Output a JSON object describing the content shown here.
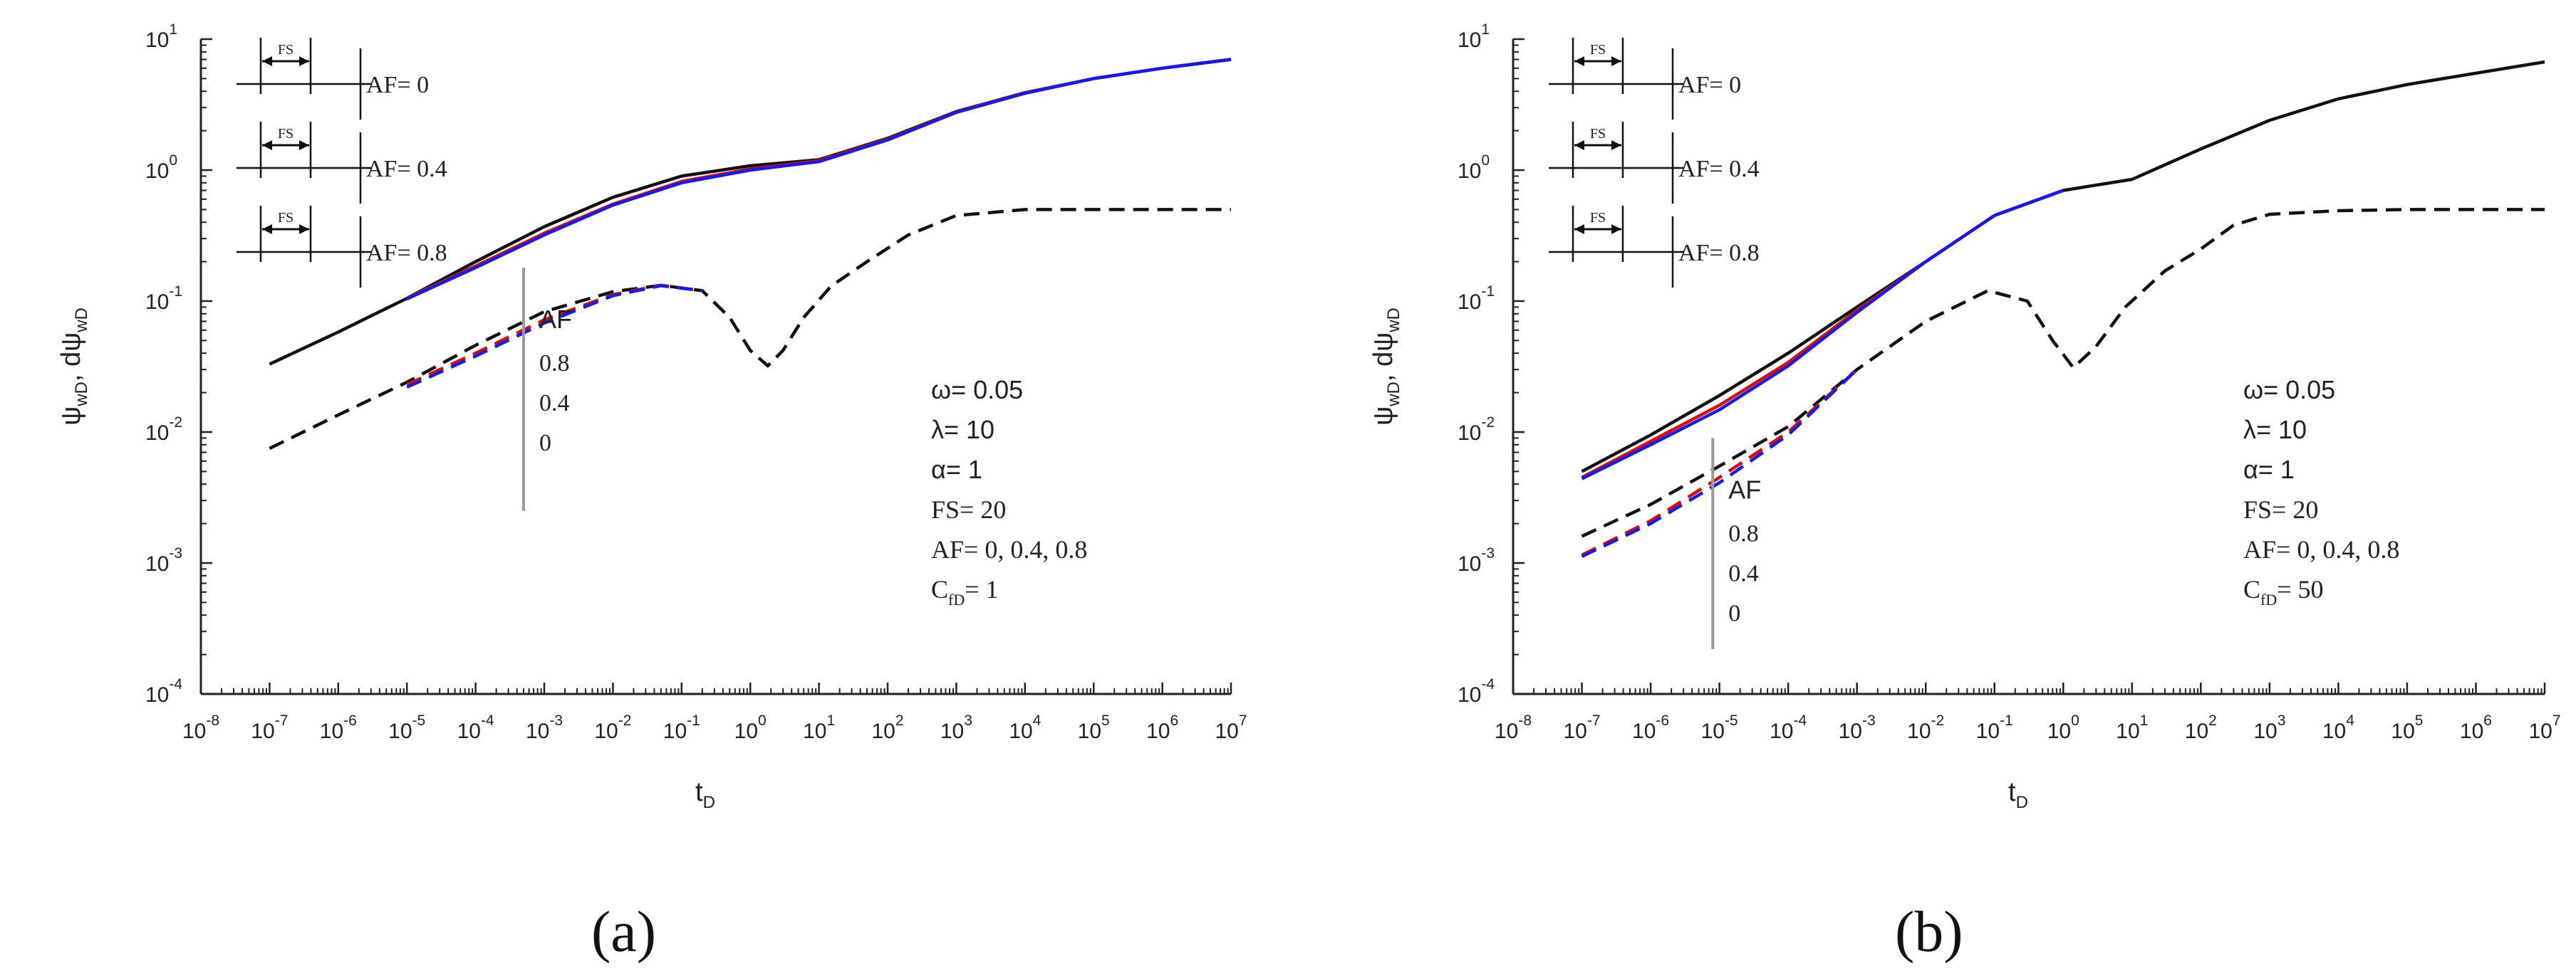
{
  "colors": {
    "af0": "#111111",
    "af04": "#d01010",
    "af08": "#1a1ae0",
    "axis": "#222222",
    "marker": "#9a9a9a"
  },
  "chart_data": [
    {
      "type": "line",
      "panel_label": "(a)",
      "xscale": "log",
      "yscale": "log",
      "xlim": [
        1e-08,
        10000000.0
      ],
      "ylim": [
        0.0001,
        10
      ],
      "xlabel": {
        "main": "t",
        "sub": "D"
      },
      "ylabel": {
        "a": "ψ",
        "a_sub": "wD",
        "sep": ", dψ",
        "b_sub": "wD"
      },
      "xticks": [
        {
          "b": "10",
          "e": "-8"
        },
        {
          "b": "10",
          "e": "-7"
        },
        {
          "b": "10",
          "e": "-6"
        },
        {
          "b": "10",
          "e": "-5"
        },
        {
          "b": "10",
          "e": "-4"
        },
        {
          "b": "10",
          "e": "-3"
        },
        {
          "b": "10",
          "e": "-2"
        },
        {
          "b": "10",
          "e": "-1"
        },
        {
          "b": "10",
          "e": "0"
        },
        {
          "b": "10",
          "e": "1"
        },
        {
          "b": "10",
          "e": "2"
        },
        {
          "b": "10",
          "e": "3"
        },
        {
          "b": "10",
          "e": "4"
        },
        {
          "b": "10",
          "e": "5"
        },
        {
          "b": "10",
          "e": "6"
        },
        {
          "b": "10",
          "e": "7"
        }
      ],
      "yticks": [
        {
          "b": "10",
          "e": "-4"
        },
        {
          "b": "10",
          "e": "-3"
        },
        {
          "b": "10",
          "e": "-2"
        },
        {
          "b": "10",
          "e": "-1"
        },
        {
          "b": "10",
          "e": "0"
        },
        {
          "b": "10",
          "e": "1"
        }
      ],
      "legend": {
        "items": [
          {
            "label": "AF= 0",
            "fs": "FS",
            "color_key": "af0"
          },
          {
            "label": "AF= 0.4",
            "fs": "FS",
            "color_key": "af04"
          },
          {
            "label": "AF= 0.8",
            "fs": "FS",
            "color_key": "af08"
          }
        ]
      },
      "annotation": {
        "title": "AF",
        "values": [
          "0.8",
          "0.4",
          "0"
        ],
        "arrow_x": 0.0005,
        "arrow_y": [
          0.18,
          0.0025
        ]
      },
      "params": {
        "omega": "ω= 0.05",
        "lambda": "λ= 10",
        "alpha": "α= 1",
        "fs": "FS= 20",
        "af": "AF= 0, 0.4, 0.8",
        "cfd_pre": "C",
        "cfd_sub": "fD",
        "cfd_post": "= 1"
      },
      "series": [
        {
          "name": "ψwD AF=0",
          "color_key": "af0",
          "dash": false,
          "points": [
            [
              1e-07,
              0.033
            ],
            [
              1e-06,
              0.058
            ],
            [
              1e-05,
              0.105
            ],
            [
              0.0001,
              0.2
            ],
            [
              0.001,
              0.37
            ],
            [
              0.01,
              0.62
            ],
            [
              0.1,
              0.9
            ],
            [
              1,
              1.08
            ],
            [
              10,
              1.2
            ],
            [
              100,
              1.75
            ],
            [
              1000.0,
              2.8
            ],
            [
              10000.0,
              3.9
            ],
            [
              100000.0,
              5
            ],
            [
              1000000.0,
              6
            ],
            [
              10000000.0,
              7
            ]
          ]
        },
        {
          "name": "ψwD AF=0.4",
          "color_key": "af04",
          "dash": false,
          "points": [
            [
              1e-05,
              0.105
            ],
            [
              0.0001,
              0.185
            ],
            [
              0.001,
              0.33
            ],
            [
              0.01,
              0.55
            ],
            [
              0.1,
              0.82
            ],
            [
              1,
              1.02
            ],
            [
              10,
              1.18
            ],
            [
              100,
              1.72
            ],
            [
              1000.0,
              2.78
            ],
            [
              10000.0,
              3.88
            ],
            [
              100000.0,
              5
            ],
            [
              1000000.0,
              6
            ],
            [
              10000000.0,
              7
            ]
          ]
        },
        {
          "name": "ψwD AF=0.8",
          "color_key": "af08",
          "dash": false,
          "points": [
            [
              1e-05,
              0.104
            ],
            [
              0.0001,
              0.18
            ],
            [
              0.001,
              0.32
            ],
            [
              0.01,
              0.54
            ],
            [
              0.1,
              0.8
            ],
            [
              1,
              1
            ],
            [
              10,
              1.16
            ],
            [
              100,
              1.7
            ],
            [
              1000.0,
              2.76
            ],
            [
              10000.0,
              3.86
            ],
            [
              100000.0,
              5
            ],
            [
              1000000.0,
              6
            ],
            [
              10000000.0,
              7
            ]
          ]
        },
        {
          "name": "dψwD AF=0",
          "color_key": "af0",
          "dash": true,
          "points": [
            [
              1e-07,
              0.0075
            ],
            [
              1e-06,
              0.0135
            ],
            [
              1e-05,
              0.024
            ],
            [
              0.0001,
              0.046
            ],
            [
              0.001,
              0.083
            ],
            [
              0.01,
              0.118
            ],
            [
              0.05,
              0.132
            ],
            [
              0.2,
              0.12
            ],
            [
              0.5,
              0.075
            ],
            [
              1,
              0.042
            ],
            [
              1.8,
              0.032
            ],
            [
              3,
              0.042
            ],
            [
              6,
              0.075
            ],
            [
              15,
              0.13
            ],
            [
              50,
              0.2
            ],
            [
              200,
              0.32
            ],
            [
              1000.0,
              0.45
            ],
            [
              10000.0,
              0.5
            ],
            [
              100000.0,
              0.5
            ],
            [
              10000000.0,
              0.5
            ]
          ]
        },
        {
          "name": "dψwD AF=0.4",
          "color_key": "af04",
          "dash": true,
          "points": [
            [
              1e-05,
              0.023
            ],
            [
              0.0001,
              0.04
            ],
            [
              0.001,
              0.072
            ],
            [
              0.01,
              0.112
            ],
            [
              0.05,
              0.132
            ],
            [
              0.2,
              0.12
            ]
          ]
        },
        {
          "name": "dψwD AF=0.8",
          "color_key": "af08",
          "dash": true,
          "points": [
            [
              1e-05,
              0.022
            ],
            [
              0.0001,
              0.038
            ],
            [
              0.001,
              0.068
            ],
            [
              0.01,
              0.11
            ],
            [
              0.05,
              0.131
            ],
            [
              0.2,
              0.12
            ]
          ]
        }
      ]
    },
    {
      "type": "line",
      "panel_label": "(b)",
      "xscale": "log",
      "yscale": "log",
      "xlim": [
        1e-08,
        10000000.0
      ],
      "ylim": [
        0.0001,
        10
      ],
      "xlabel": {
        "main": "t",
        "sub": "D"
      },
      "ylabel": {
        "a": "ψ",
        "a_sub": "wD",
        "sep": ", dψ",
        "b_sub": "wD"
      },
      "xticks": [
        {
          "b": "10",
          "e": "-8"
        },
        {
          "b": "10",
          "e": "-7"
        },
        {
          "b": "10",
          "e": "-6"
        },
        {
          "b": "10",
          "e": "-5"
        },
        {
          "b": "10",
          "e": "-4"
        },
        {
          "b": "10",
          "e": "-3"
        },
        {
          "b": "10",
          "e": "-2"
        },
        {
          "b": "10",
          "e": "-1"
        },
        {
          "b": "10",
          "e": "0"
        },
        {
          "b": "10",
          "e": "1"
        },
        {
          "b": "10",
          "e": "2"
        },
        {
          "b": "10",
          "e": "3"
        },
        {
          "b": "10",
          "e": "4"
        },
        {
          "b": "10",
          "e": "5"
        },
        {
          "b": "10",
          "e": "6"
        },
        {
          "b": "10",
          "e": "7"
        }
      ],
      "yticks": [
        {
          "b": "10",
          "e": "-4"
        },
        {
          "b": "10",
          "e": "-3"
        },
        {
          "b": "10",
          "e": "-2"
        },
        {
          "b": "10",
          "e": "-1"
        },
        {
          "b": "10",
          "e": "0"
        },
        {
          "b": "10",
          "e": "1"
        }
      ],
      "legend": {
        "items": [
          {
            "label": "AF= 0",
            "fs": "FS",
            "color_key": "af0"
          },
          {
            "label": "AF= 0.4",
            "fs": "FS",
            "color_key": "af04"
          },
          {
            "label": "AF= 0.8",
            "fs": "FS",
            "color_key": "af08"
          }
        ]
      },
      "annotation": {
        "title": "AF",
        "values": [
          "0.8",
          "0.4",
          "0"
        ],
        "arrow_x": 8e-06,
        "arrow_y": [
          0.009,
          0.00022
        ]
      },
      "params": {
        "omega": "ω= 0.05",
        "lambda": "λ= 10",
        "alpha": "α= 1",
        "fs": "FS= 20",
        "af": "AF= 0, 0.4, 0.8",
        "cfd_pre": "C",
        "cfd_sub": "fD",
        "cfd_post": "= 50"
      },
      "series": [
        {
          "name": "ψwD AF=0",
          "color_key": "af0",
          "dash": false,
          "points": [
            [
              1e-07,
              0.005
            ],
            [
              1e-06,
              0.0095
            ],
            [
              1e-05,
              0.019
            ],
            [
              0.0001,
              0.04
            ],
            [
              0.001,
              0.09
            ],
            [
              0.01,
              0.2
            ],
            [
              0.1,
              0.45
            ],
            [
              1,
              0.7
            ],
            [
              10,
              0.85
            ],
            [
              100,
              1.45
            ],
            [
              1000.0,
              2.4
            ],
            [
              10000.0,
              3.5
            ],
            [
              100000.0,
              4.5
            ],
            [
              1000000.0,
              5.5
            ],
            [
              10000000.0,
              6.7
            ]
          ]
        },
        {
          "name": "ψwD AF=0.4",
          "color_key": "af04",
          "dash": false,
          "points": [
            [
              1e-07,
              0.0045
            ],
            [
              1e-06,
              0.0085
            ],
            [
              1e-05,
              0.016
            ],
            [
              0.0001,
              0.034
            ],
            [
              0.001,
              0.085
            ],
            [
              0.01,
              0.2
            ],
            [
              0.1,
              0.45
            ],
            [
              1,
              0.7
            ]
          ]
        },
        {
          "name": "ψwD AF=0.8",
          "color_key": "af08",
          "dash": false,
          "points": [
            [
              1e-07,
              0.0044
            ],
            [
              1e-06,
              0.008
            ],
            [
              1e-05,
              0.0148
            ],
            [
              0.0001,
              0.032
            ],
            [
              0.001,
              0.082
            ],
            [
              0.01,
              0.2
            ],
            [
              0.1,
              0.45
            ],
            [
              1,
              0.7
            ]
          ]
        },
        {
          "name": "dψwD AF=0",
          "color_key": "af0",
          "dash": true,
          "points": [
            [
              1e-07,
              0.0016
            ],
            [
              1e-06,
              0.0028
            ],
            [
              1e-05,
              0.0055
            ],
            [
              0.0001,
              0.011
            ],
            [
              0.001,
              0.03
            ],
            [
              0.01,
              0.07
            ],
            [
              0.08,
              0.12
            ],
            [
              0.3,
              0.1
            ],
            [
              0.7,
              0.05
            ],
            [
              1.4,
              0.031
            ],
            [
              3,
              0.045
            ],
            [
              8,
              0.09
            ],
            [
              30,
              0.17
            ],
            [
              100,
              0.25
            ],
            [
              300,
              0.38
            ],
            [
              1000.0,
              0.46
            ],
            [
              10000.0,
              0.49
            ],
            [
              100000.0,
              0.5
            ],
            [
              10000000.0,
              0.5
            ]
          ]
        },
        {
          "name": "dψwD AF=0.4",
          "color_key": "af04",
          "dash": true,
          "points": [
            [
              1e-07,
              0.00115
            ],
            [
              1e-06,
              0.0021
            ],
            [
              1e-05,
              0.0045
            ],
            [
              0.0001,
              0.01
            ],
            [
              0.001,
              0.03
            ]
          ]
        },
        {
          "name": "dψwD AF=0.8",
          "color_key": "af08",
          "dash": true,
          "points": [
            [
              1e-07,
              0.00112
            ],
            [
              1e-06,
              0.002
            ],
            [
              1e-05,
              0.0041
            ],
            [
              0.0001,
              0.0095
            ],
            [
              0.001,
              0.03
            ]
          ]
        }
      ]
    }
  ]
}
